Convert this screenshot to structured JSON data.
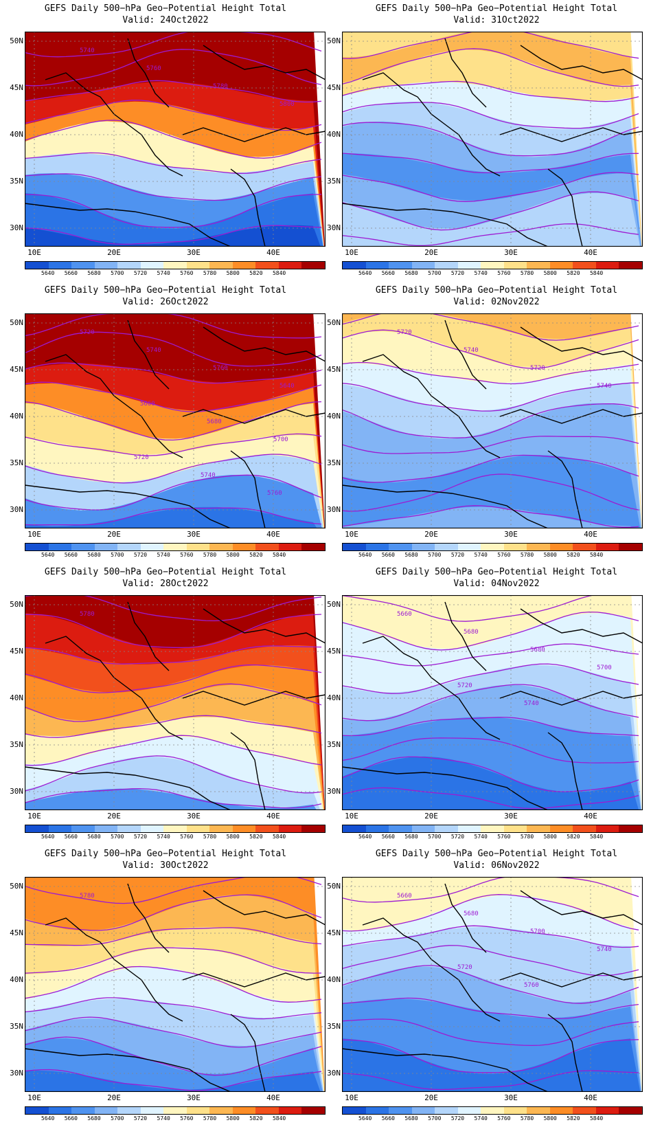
{
  "panel_title": "GEFS Daily 500−hPa Geo−Potential Height Total",
  "valid_prefix": "Valid:",
  "lat_labels": [
    "50N",
    "45N",
    "40N",
    "35N",
    "30N"
  ],
  "lon_labels": [
    "10E",
    "20E",
    "30E",
    "40E"
  ],
  "colorbar": {
    "levels": [
      "5640",
      "5660",
      "5680",
      "5700",
      "5720",
      "5740",
      "5760",
      "5780",
      "5800",
      "5820",
      "5840"
    ],
    "colors": [
      "#1450d2",
      "#2b74e6",
      "#4f93f0",
      "#82b4f5",
      "#b4d6fb",
      "#e0f4ff",
      "#fff6c0",
      "#fee18a",
      "#fcb752",
      "#fd8d26",
      "#f2501c",
      "#dc1c10",
      "#a50000"
    ]
  },
  "contour_color": "#9d1ad2",
  "panels": [
    {
      "valid": "24Oct2022",
      "stops": [
        12,
        12,
        12,
        11,
        9,
        6,
        4,
        2,
        1,
        0
      ],
      "labels": [
        "5740",
        "5760",
        "5780",
        "5800"
      ]
    },
    {
      "valid": "31Oct2022",
      "stops": [
        7,
        8,
        7,
        5,
        4,
        3,
        2,
        3,
        4,
        4
      ],
      "labels": []
    },
    {
      "valid": "26Oct2022",
      "stops": [
        12,
        12,
        12,
        11,
        9,
        7,
        6,
        4,
        2,
        1
      ],
      "labels": [
        "5720",
        "5740",
        "5760",
        "5640",
        "5660",
        "5680",
        "5700",
        "5720",
        "5740",
        "5760"
      ]
    },
    {
      "valid": "02Nov2022",
      "stops": [
        8,
        7,
        6,
        5,
        4,
        3,
        3,
        2,
        2,
        3
      ],
      "labels": [
        "5720",
        "5740",
        "5720",
        "5740"
      ]
    },
    {
      "valid": "28Oct2022",
      "stops": [
        12,
        12,
        11,
        10,
        9,
        8,
        6,
        5,
        4,
        2
      ],
      "labels": [
        "5780"
      ]
    },
    {
      "valid": "04Nov2022",
      "stops": [
        6,
        6,
        5,
        5,
        4,
        3,
        2,
        2,
        1,
        1
      ],
      "labels": [
        "5660",
        "5680",
        "5680",
        "5700",
        "5720",
        "5740"
      ]
    },
    {
      "valid": "30Oct2022",
      "stops": [
        9,
        9,
        8,
        7,
        6,
        5,
        4,
        3,
        2,
        1
      ],
      "labels": [
        "5780"
      ]
    },
    {
      "valid": "06Nov2022",
      "stops": [
        6,
        6,
        5,
        4,
        4,
        3,
        2,
        2,
        1,
        1
      ],
      "labels": [
        "5660",
        "5680",
        "5700",
        "5740",
        "5720",
        "5760"
      ]
    }
  ]
}
